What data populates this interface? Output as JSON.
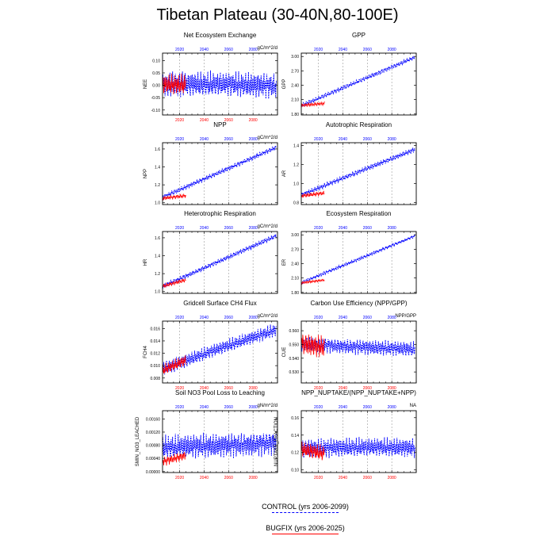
{
  "page_title": "Tibetan Plateau (30-40N,80-100E)",
  "legend": {
    "items": [
      {
        "label": "CONTROL (yrs 2006-2099)",
        "color": "#0000ff",
        "style": "dashed"
      },
      {
        "label": "BUGFIX (yrs 2006-2025)",
        "color": "#ff0000",
        "style": "solid"
      }
    ]
  },
  "colors": {
    "control": "#0000ff",
    "bugfix": "#ff0000",
    "axis": "#000000",
    "grid": "#999999"
  },
  "chart_data": [
    {
      "type": "line",
      "title": "Net Ecosystem Exchange",
      "units": "gC/m^2/d",
      "ylabel": "NEE",
      "yticks": [
        "0.10",
        "0.05",
        "0.00",
        "-0.05",
        "-0.10"
      ],
      "ytick_values": [
        0.1,
        0.05,
        0.0,
        -0.05,
        -0.1
      ],
      "ylim": [
        -0.12,
        0.13
      ],
      "top_ticks": [
        "2020",
        "2040",
        "2060",
        "2080"
      ],
      "bottom_ticks": [
        "2020",
        "2040",
        "2060",
        "2080"
      ],
      "xlim": [
        2006,
        2100
      ],
      "grid_x": true,
      "series": [
        {
          "period": [
            2006,
            2099
          ],
          "mean": [
            0.0,
            0.0
          ],
          "amp": 0.055
        },
        {
          "period": [
            2006,
            2025
          ],
          "mean": [
            0.0,
            0.0
          ],
          "amp": 0.045
        }
      ]
    },
    {
      "type": "line",
      "title": "GPP",
      "units": "",
      "ylabel": "GPP",
      "yticks": [
        "3.00",
        "2.70",
        "2.40",
        "2.10",
        "1.80"
      ],
      "ytick_values": [
        3.0,
        2.7,
        2.4,
        2.1,
        1.8
      ],
      "ylim": [
        1.78,
        3.07
      ],
      "top_ticks": [
        "2020",
        "2040",
        "2060",
        "2080"
      ],
      "bottom_ticks": [],
      "xlim": [
        2006,
        2100
      ],
      "grid_x": true,
      "series": [
        {
          "period": [
            2006,
            2099
          ],
          "mean": [
            1.98,
            2.98
          ],
          "amp": 0.05
        },
        {
          "period": [
            2006,
            2025
          ],
          "mean": [
            1.98,
            2.02
          ],
          "amp": 0.04
        }
      ]
    },
    {
      "type": "line",
      "title": "NPP",
      "units": "gC/m^2/d",
      "ylabel": "NPP",
      "yticks": [
        "1.6",
        "1.4",
        "1.2",
        "1.0"
      ],
      "ytick_values": [
        1.6,
        1.4,
        1.2,
        1.0
      ],
      "ylim": [
        0.98,
        1.67
      ],
      "top_ticks": [
        "2020",
        "2040",
        "2060",
        "2080"
      ],
      "bottom_ticks": [],
      "xlim": [
        2006,
        2100
      ],
      "grid_x": true,
      "series": [
        {
          "period": [
            2006,
            2099
          ],
          "mean": [
            1.06,
            1.62
          ],
          "amp": 0.03
        },
        {
          "period": [
            2006,
            2025
          ],
          "mean": [
            1.05,
            1.08
          ],
          "amp": 0.025
        }
      ]
    },
    {
      "type": "line",
      "title": "Autotrophic Respiration",
      "units": "",
      "ylabel": "AR",
      "yticks": [
        "1.4",
        "1.2",
        "1.0",
        "0.8"
      ],
      "ytick_values": [
        1.4,
        1.2,
        1.0,
        0.8
      ],
      "ylim": [
        0.78,
        1.43
      ],
      "top_ticks": [
        "2020",
        "2040",
        "2060",
        "2080"
      ],
      "bottom_ticks": [],
      "xlim": [
        2006,
        2100
      ],
      "grid_x": true,
      "series": [
        {
          "period": [
            2006,
            2099
          ],
          "mean": [
            0.88,
            1.36
          ],
          "amp": 0.03
        },
        {
          "period": [
            2006,
            2025
          ],
          "mean": [
            0.87,
            0.9
          ],
          "amp": 0.025
        }
      ]
    },
    {
      "type": "line",
      "title": "Heterotrophic Respiration",
      "units": "gC/m^2/d",
      "ylabel": "HR",
      "yticks": [
        "1.6",
        "1.4",
        "1.2",
        "1.0"
      ],
      "ytick_values": [
        1.6,
        1.4,
        1.2,
        1.0
      ],
      "ylim": [
        0.98,
        1.67
      ],
      "top_ticks": [
        "2020",
        "2040",
        "2060",
        "2080"
      ],
      "bottom_ticks": [],
      "xlim": [
        2006,
        2100
      ],
      "grid_x": true,
      "series": [
        {
          "period": [
            2006,
            2099
          ],
          "mean": [
            1.06,
            1.62
          ],
          "amp": 0.03
        },
        {
          "period": [
            2006,
            2025
          ],
          "mean": [
            1.06,
            1.13
          ],
          "amp": 0.025
        }
      ]
    },
    {
      "type": "line",
      "title": "Ecosystem Respiration",
      "units": "",
      "ylabel": "ER",
      "yticks": [
        "3.00",
        "2.70",
        "2.40",
        "2.10",
        "1.80"
      ],
      "ytick_values": [
        3.0,
        2.7,
        2.4,
        2.1,
        1.8
      ],
      "ylim": [
        1.78,
        3.07
      ],
      "top_ticks": [
        "2020",
        "2040",
        "2060",
        "2080"
      ],
      "bottom_ticks": [],
      "xlim": [
        2006,
        2100
      ],
      "grid_x": true,
      "series": [
        {
          "period": [
            2006,
            2099
          ],
          "mean": [
            2.0,
            2.98
          ],
          "amp": 0.04
        },
        {
          "period": [
            2006,
            2025
          ],
          "mean": [
            2.0,
            2.06
          ],
          "amp": 0.03
        }
      ]
    },
    {
      "type": "line",
      "title": "Gridcell Surface CH4 Flux",
      "units": "gC/m^2/d",
      "ylabel": "FCH4",
      "yticks": [
        "0.016",
        "0.014",
        "0.012",
        "0.010",
        "0.008"
      ],
      "ytick_values": [
        0.016,
        0.014,
        0.012,
        0.01,
        0.008
      ],
      "ylim": [
        0.0072,
        0.0172
      ],
      "top_ticks": [
        "2020",
        "2040",
        "2060",
        "2080"
      ],
      "bottom_ticks": [
        "2020",
        "2040",
        "2060",
        "2080"
      ],
      "xlim": [
        2006,
        2100
      ],
      "grid_x": true,
      "series": [
        {
          "period": [
            2006,
            2099
          ],
          "mean": [
            0.0095,
            0.0158
          ],
          "amp": 0.0012
        },
        {
          "period": [
            2006,
            2025
          ],
          "mean": [
            0.0092,
            0.0108
          ],
          "amp": 0.001
        }
      ]
    },
    {
      "type": "line",
      "title": "Carbon Use Efficiency (NPP/GPP)",
      "units": "NPP/GPP",
      "ylabel": "CUE",
      "yticks": [
        "0.560",
        "0.550",
        "0.540",
        "0.530"
      ],
      "ytick_values": [
        0.56,
        0.55,
        0.54,
        0.53
      ],
      "ylim": [
        0.522,
        0.567
      ],
      "top_ticks": [
        "2020",
        "2040",
        "2060",
        "2080"
      ],
      "bottom_ticks": [
        "2020",
        "2040",
        "2060",
        "2080"
      ],
      "xlim": [
        2006,
        2100
      ],
      "grid_x": true,
      "series": [
        {
          "period": [
            2006,
            2099
          ],
          "mean": [
            0.551,
            0.546
          ],
          "amp": 0.006
        },
        {
          "period": [
            2006,
            2025
          ],
          "mean": [
            0.551,
            0.548
          ],
          "amp": 0.009
        }
      ]
    },
    {
      "type": "line",
      "title": "Soil NO3 Pool Loss to Leaching",
      "units": "gN/m^2/d",
      "ylabel": "SMIN_NO3_LEACHED",
      "yticks": [
        "0.00160",
        "0.00120",
        "0.00080",
        "0.00040",
        "0.00000"
      ],
      "ytick_values": [
        0.0016,
        0.0012,
        0.0008,
        0.0004,
        0.0
      ],
      "ylim": [
        -3e-05,
        0.00185
      ],
      "top_ticks": [
        "2020",
        "2040",
        "2060",
        "2080"
      ],
      "bottom_ticks": [
        "2020",
        "2040",
        "2060",
        "2080"
      ],
      "xlim": [
        2006,
        2100
      ],
      "grid_x": true,
      "series": [
        {
          "period": [
            2006,
            2099
          ],
          "mean": [
            0.0007,
            0.0009
          ],
          "amp": 0.0004
        },
        {
          "period": [
            2006,
            2025
          ],
          "mean": [
            0.0003,
            0.0005
          ],
          "amp": 0.00015
        }
      ]
    },
    {
      "type": "line",
      "title": "NPP_NUPTAKE/(NPP_NUPTAKE+NPP)",
      "units": "NA",
      "ylabel": "NUPTAKE_FRACTION",
      "yticks": [
        "0.16",
        "0.14",
        "0.12",
        "0.10"
      ],
      "ytick_values": [
        0.16,
        0.14,
        0.12,
        0.1
      ],
      "ylim": [
        0.097,
        0.168
      ],
      "top_ticks": [
        "2020",
        "2040",
        "2060",
        "2080"
      ],
      "bottom_ticks": [
        "2020",
        "2040",
        "2060",
        "2080"
      ],
      "xlim": [
        2006,
        2100
      ],
      "grid_x": true,
      "series": [
        {
          "period": [
            2006,
            2099
          ],
          "mean": [
            0.125,
            0.125
          ],
          "amp": 0.012
        },
        {
          "period": [
            2006,
            2025
          ],
          "mean": [
            0.123,
            0.118
          ],
          "amp": 0.01
        }
      ]
    }
  ]
}
